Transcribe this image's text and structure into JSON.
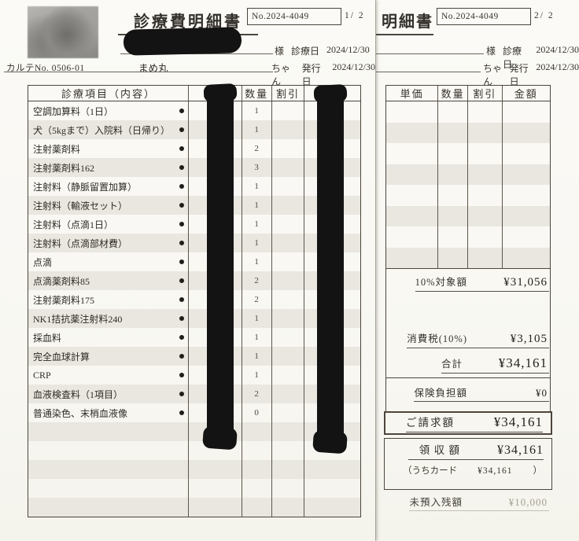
{
  "doc": {
    "title": "診療費明細書",
    "title_partial": "明細書",
    "no_label": "No.2024-4049",
    "page1": "1/  2",
    "page2": "2/  2",
    "karte_no": "カルテNo. 0506-01",
    "pet_name": "まめ丸",
    "sama": "様",
    "chan": "ちゃん",
    "visit_label": "診療日",
    "visit_date": "2024/12/30",
    "issue_label": "発行日",
    "issue_date": "2024/12/30"
  },
  "table": {
    "headers": {
      "item": "診療項目（内容）",
      "unit_price": "単価",
      "qty": "数量",
      "discount": "割引",
      "amount": "金額"
    },
    "unit_price_redacted": true,
    "amount_redacted": true,
    "rows": [
      {
        "item": "空調加算料（1日）",
        "qty": "1"
      },
      {
        "item": "犬（5kgまで）入院料（日帰り）",
        "qty": "1"
      },
      {
        "item": "注射薬剤料",
        "qty": "2"
      },
      {
        "item": "注射薬剤料162",
        "qty": "3"
      },
      {
        "item": "注射料（静脈留置加算）",
        "qty": "1"
      },
      {
        "item": "注射料（輸液セット）",
        "qty": "1"
      },
      {
        "item": "注射料（点滴1日）",
        "qty": "1"
      },
      {
        "item": "注射料（点滴部材費）",
        "qty": "1"
      },
      {
        "item": "点滴",
        "qty": "1"
      },
      {
        "item": "点滴薬剤料85",
        "qty": "2"
      },
      {
        "item": "注射薬剤料175",
        "qty": "2"
      },
      {
        "item": "NK1拮抗薬注射料240",
        "qty": "1"
      },
      {
        "item": "採血料",
        "qty": "1"
      },
      {
        "item": "完全血球計算",
        "qty": "1"
      },
      {
        "item": "CRP",
        "qty": "1"
      },
      {
        "item": "血液検査料（1項目）",
        "qty": "2"
      },
      {
        "item": "普通染色、末梢血液像",
        "qty": "0"
      }
    ],
    "empty_rows_page1": 5,
    "empty_rows_page2": 8
  },
  "summary": {
    "taxable_label": "10%対象額",
    "taxable_value": "¥31,056",
    "tax_label": "消費税(10%)",
    "tax_value": "¥3,105",
    "total_label": "合計",
    "total_value": "¥34,161",
    "insurance_label": "保険負担額",
    "insurance_value": "¥0",
    "billed_label": "ご請求額",
    "billed_value": "¥34,161",
    "received_label": "領 収 額",
    "received_value": "¥34,161",
    "card_label": "（うちカード",
    "card_value": "¥34,161",
    "card_close": "）",
    "deposit_label": "未預入残額",
    "deposit_value": "¥10,000"
  }
}
